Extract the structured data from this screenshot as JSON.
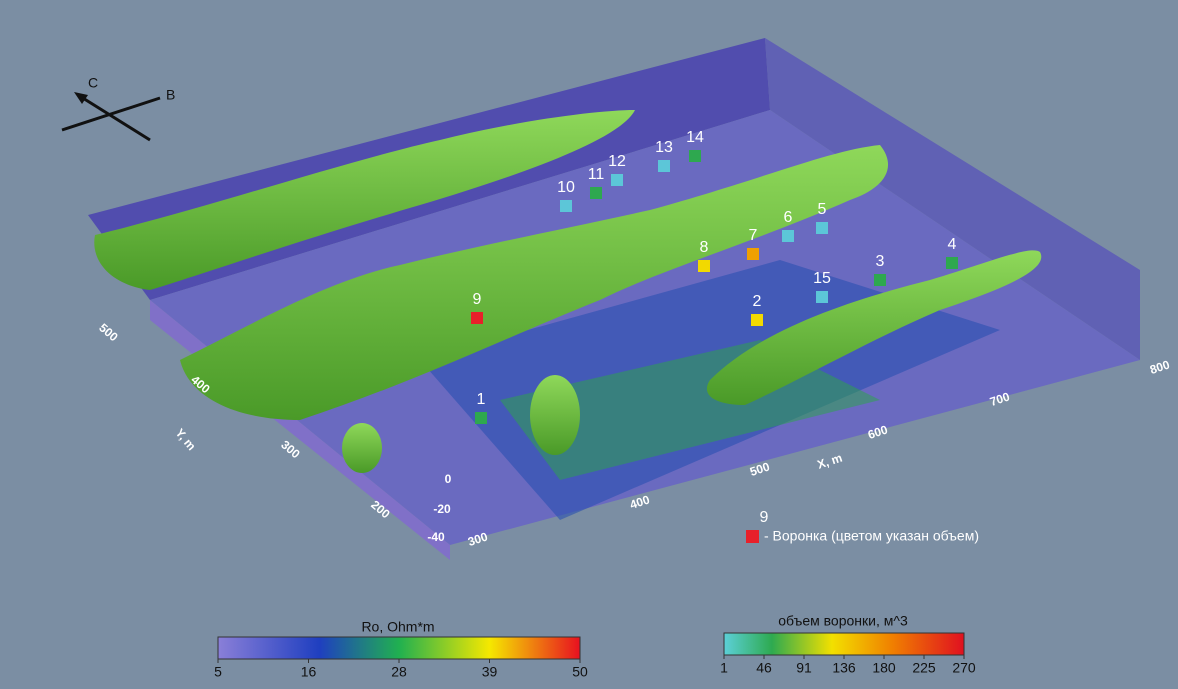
{
  "compass": {
    "c": "C",
    "b": "B"
  },
  "axes": {
    "x_label": "X, m",
    "y_label": "Y, m",
    "x_ticks": [
      "300",
      "400",
      "500",
      "600",
      "700",
      "800"
    ],
    "y_ticks": [
      "200",
      "300",
      "400",
      "500"
    ],
    "z_ticks": [
      "0",
      "-20",
      "-40"
    ]
  },
  "funnels": [
    {
      "label": "1",
      "color": "#2ea84f"
    },
    {
      "label": "2",
      "color": "#f2d900"
    },
    {
      "label": "3",
      "color": "#2ea84f"
    },
    {
      "label": "4",
      "color": "#2ea84f"
    },
    {
      "label": "5",
      "color": "#5cc6d8"
    },
    {
      "label": "6",
      "color": "#5cc6d8"
    },
    {
      "label": "7",
      "color": "#f0a000"
    },
    {
      "label": "8",
      "color": "#f2d900"
    },
    {
      "label": "9",
      "color": "#e8202a"
    },
    {
      "label": "10",
      "color": "#5cc6d8"
    },
    {
      "label": "11",
      "color": "#2ea84f"
    },
    {
      "label": "12",
      "color": "#5cc6d8"
    },
    {
      "label": "13",
      "color": "#5cc6d8"
    },
    {
      "label": "14",
      "color": "#2ea84f"
    },
    {
      "label": "15",
      "color": "#5cc6d8"
    }
  ],
  "legend": {
    "number": "9",
    "text": "- Воронка (цветом указан объем)"
  },
  "colorbar_ro": {
    "title": "Ro, Ohm*m",
    "ticks": [
      "5",
      "16",
      "28",
      "39",
      "50"
    ]
  },
  "colorbar_volume": {
    "title": "объем воронки, м^3",
    "ticks": [
      "1",
      "46",
      "91",
      "136",
      "180",
      "225",
      "270"
    ]
  }
}
